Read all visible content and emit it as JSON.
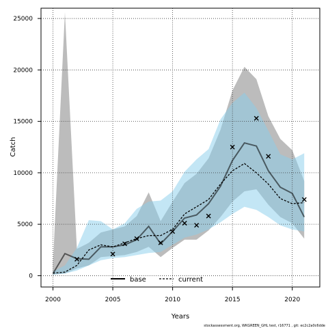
{
  "chart_data": {
    "type": "line",
    "xlabel": "Years",
    "ylabel": "Catch",
    "xlim": [
      1999,
      2022.3
    ],
    "ylim": [
      -1100,
      26000
    ],
    "x_ticks": [
      2000,
      2005,
      2010,
      2015,
      2020
    ],
    "y_ticks": [
      0,
      5000,
      10000,
      15000,
      20000,
      25000
    ],
    "grid": true,
    "legend_position": "bottom-center",
    "colors": {
      "base_line": "#000000",
      "base_band": "#a6a6a6",
      "current_line": "#000000",
      "current_band": "#87ceeb",
      "observed_marker": "#000000"
    },
    "years": [
      2000,
      2001,
      2002,
      2003,
      2004,
      2005,
      2006,
      2007,
      2008,
      2009,
      2010,
      2011,
      2012,
      2013,
      2014,
      2015,
      2016,
      2017,
      2018,
      2019,
      2020,
      2021
    ],
    "series": [
      {
        "name": "base",
        "style": "solid",
        "values": [
          200,
          2150,
          1650,
          1600,
          2800,
          2800,
          3000,
          3500,
          4800,
          3100,
          4300,
          5600,
          5900,
          7000,
          8700,
          11200,
          12900,
          12600,
          10200,
          8600,
          8000,
          5700
        ],
        "lower": [
          100,
          200,
          700,
          1000,
          1800,
          1900,
          2000,
          2300,
          2800,
          1800,
          2700,
          3500,
          3500,
          4400,
          5700,
          7200,
          8200,
          8400,
          6900,
          5700,
          5100,
          3600
        ],
        "upper": [
          1200,
          25600,
          2600,
          3200,
          4200,
          4500,
          4800,
          5800,
          8100,
          5300,
          7200,
          9000,
          9900,
          11400,
          14200,
          18000,
          20300,
          19100,
          15500,
          13300,
          12200,
          9200
        ]
      },
      {
        "name": "current",
        "style": "dashed",
        "values": [
          250,
          350,
          1000,
          2500,
          3000,
          2800,
          3200,
          3600,
          3900,
          3900,
          4500,
          6000,
          6700,
          7400,
          8900,
          10200,
          10900,
          10000,
          8900,
          7500,
          7000,
          7100
        ],
        "lower": [
          100,
          200,
          500,
          1000,
          1500,
          1700,
          1800,
          2000,
          2200,
          2300,
          3000,
          3700,
          4000,
          4500,
          5200,
          6000,
          6700,
          6400,
          5700,
          4900,
          4500,
          4300
        ],
        "upper": [
          400,
          1000,
          2700,
          5400,
          5300,
          4500,
          5100,
          6500,
          7200,
          7300,
          8200,
          10100,
          11300,
          12300,
          15200,
          16800,
          17800,
          16300,
          14100,
          11800,
          11300,
          11900
        ]
      },
      {
        "name": "observed",
        "style": "markers",
        "marker": "x",
        "points": [
          [
            2002,
            1600
          ],
          [
            2005,
            2100
          ],
          [
            2006,
            3100
          ],
          [
            2007,
            3600
          ],
          [
            2009,
            3200
          ],
          [
            2010,
            4300
          ],
          [
            2011,
            5100
          ],
          [
            2012,
            4900
          ],
          [
            2013,
            5800
          ],
          [
            2015,
            12500
          ],
          [
            2017,
            15300
          ],
          [
            2018,
            11600
          ],
          [
            2021,
            7400
          ]
        ]
      }
    ],
    "legend": [
      {
        "label": "base",
        "style": "solid"
      },
      {
        "label": "current",
        "style": "dashed"
      }
    ],
    "footnote": "stockassessment.org, WKGREEN_GHL test, r16771 , git: ec2c2a0c6dde"
  }
}
